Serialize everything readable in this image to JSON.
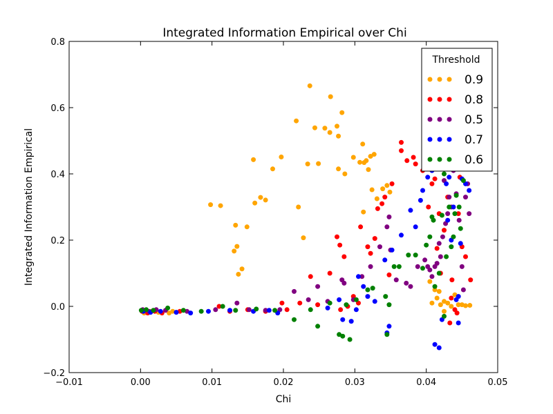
{
  "chart_data": {
    "type": "scatter",
    "title": "Integrated Information Empirical over Chi",
    "xlabel": "Chi",
    "ylabel": "Integrated Information Empirical",
    "xlim": [
      -0.01,
      0.05
    ],
    "ylim": [
      -0.2,
      0.8
    ],
    "xticks": [
      "−0.01",
      "0.00",
      "0.01",
      "0.02",
      "0.03",
      "0.04",
      "0.05"
    ],
    "yticks": [
      "−0.2",
      "0.0",
      "0.2",
      "0.4",
      "0.6",
      "0.8"
    ],
    "grid": false,
    "legend": {
      "title": "Threshold",
      "placement": "top-right"
    },
    "series": [
      {
        "name": "0.9",
        "color": "#FFA500",
        "points": [
          [
            0.0005,
            -0.02
          ],
          [
            0.0015,
            -0.015
          ],
          [
            0.0025,
            -0.018
          ],
          [
            0.004,
            -0.02
          ],
          [
            0.0045,
            -0.015
          ],
          [
            0.0098,
            0.307
          ],
          [
            0.0112,
            0.304
          ],
          [
            0.0133,
            0.245
          ],
          [
            0.0131,
            0.167
          ],
          [
            0.0135,
            0.181
          ],
          [
            0.0137,
            0.097
          ],
          [
            0.0142,
            0.113
          ],
          [
            0.0149,
            0.24
          ],
          [
            0.0158,
            0.443
          ],
          [
            0.016,
            0.312
          ],
          [
            0.0168,
            0.329
          ],
          [
            0.0175,
            0.321
          ],
          [
            0.0185,
            0.415
          ],
          [
            0.0197,
            0.451
          ],
          [
            0.0218,
            0.56
          ],
          [
            0.0221,
            0.3
          ],
          [
            0.0228,
            0.207
          ],
          [
            0.0234,
            0.43
          ],
          [
            0.0237,
            0.666
          ],
          [
            0.0244,
            0.539
          ],
          [
            0.0249,
            0.431
          ],
          [
            0.0258,
            0.538
          ],
          [
            0.0265,
            0.525
          ],
          [
            0.0266,
            0.633
          ],
          [
            0.0275,
            0.544
          ],
          [
            0.0277,
            0.514
          ],
          [
            0.0277,
            0.415
          ],
          [
            0.0282,
            0.585
          ],
          [
            0.0286,
            0.4
          ],
          [
            0.0298,
            0.45
          ],
          [
            0.0307,
            0.435
          ],
          [
            0.0311,
            0.49
          ],
          [
            0.0313,
            0.434
          ],
          [
            0.0316,
            0.44
          ],
          [
            0.0319,
            0.413
          ],
          [
            0.0322,
            0.453
          ],
          [
            0.0324,
            0.352
          ],
          [
            0.0327,
            0.459
          ],
          [
            0.0331,
            0.325
          ],
          [
            0.0339,
            0.355
          ],
          [
            0.0312,
            0.285
          ],
          [
            0.0345,
            0.365
          ],
          [
            0.0349,
            0.345
          ],
          [
            0.0405,
            0.075
          ],
          [
            0.0412,
            0.05
          ],
          [
            0.0418,
            0.045
          ],
          [
            0.042,
            0.005
          ],
          [
            0.0425,
            0.015
          ],
          [
            0.043,
            0.01
          ],
          [
            0.0435,
            0.0
          ],
          [
            0.044,
            0.035
          ],
          [
            0.0445,
            0.005
          ],
          [
            0.045,
            0.005
          ],
          [
            0.0455,
            0.002
          ],
          [
            0.0461,
            0.003
          ],
          [
            0.0415,
            0.025
          ],
          [
            0.0425,
            -0.015
          ],
          [
            0.0408,
            0.01
          ]
        ]
      },
      {
        "name": "0.8",
        "color": "#FF0000",
        "points": [
          [
            0.0002,
            -0.015
          ],
          [
            0.001,
            -0.02
          ],
          [
            0.002,
            -0.015
          ],
          [
            0.003,
            -0.02
          ],
          [
            0.0055,
            -0.015
          ],
          [
            0.011,
            0.0
          ],
          [
            0.0125,
            -0.015
          ],
          [
            0.015,
            -0.01
          ],
          [
            0.0175,
            -0.015
          ],
          [
            0.0198,
            0.01
          ],
          [
            0.0205,
            -0.01
          ],
          [
            0.0223,
            0.01
          ],
          [
            0.0238,
            0.09
          ],
          [
            0.0248,
            0.005
          ],
          [
            0.0265,
            0.1
          ],
          [
            0.0275,
            0.21
          ],
          [
            0.0279,
            0.185
          ],
          [
            0.0285,
            0.15
          ],
          [
            0.028,
            -0.01
          ],
          [
            0.029,
            0.0
          ],
          [
            0.0298,
            0.03
          ],
          [
            0.0305,
            0.01
          ],
          [
            0.0308,
            0.24
          ],
          [
            0.0318,
            0.18
          ],
          [
            0.0322,
            0.16
          ],
          [
            0.0328,
            0.205
          ],
          [
            0.0332,
            0.295
          ],
          [
            0.0338,
            0.31
          ],
          [
            0.0342,
            0.33
          ],
          [
            0.0348,
            0.095
          ],
          [
            0.0352,
            0.37
          ],
          [
            0.0365,
            0.47
          ],
          [
            0.0373,
            0.44
          ],
          [
            0.0382,
            0.45
          ],
          [
            0.0385,
            0.43
          ],
          [
            0.0365,
            0.495
          ],
          [
            0.0395,
            0.41
          ],
          [
            0.0403,
            0.3
          ],
          [
            0.0408,
            0.37
          ],
          [
            0.041,
            0.445
          ],
          [
            0.0412,
            0.385
          ],
          [
            0.0415,
            0.175
          ],
          [
            0.0418,
            0.28
          ],
          [
            0.042,
            0.1
          ],
          [
            0.0425,
            0.23
          ],
          [
            0.0428,
            0.46
          ],
          [
            0.043,
            0.33
          ],
          [
            0.0433,
            -0.05
          ],
          [
            0.0436,
            0.08
          ],
          [
            0.044,
            -0.01
          ],
          [
            0.0443,
            -0.02
          ],
          [
            0.0447,
            0.39
          ],
          [
            0.045,
            0.18
          ],
          [
            0.0455,
            0.15
          ],
          [
            0.0462,
            0.08
          ],
          [
            0.0445,
            0.28
          ],
          [
            0.0435,
            0.025
          ],
          [
            0.0422,
            0.43
          ]
        ]
      },
      {
        "name": "0.5",
        "color": "#800080",
        "points": [
          [
            0.0003,
            -0.01
          ],
          [
            0.0012,
            -0.015
          ],
          [
            0.0022,
            -0.01
          ],
          [
            0.0035,
            -0.012
          ],
          [
            0.0065,
            -0.015
          ],
          [
            0.0105,
            -0.01
          ],
          [
            0.0135,
            0.01
          ],
          [
            0.0152,
            -0.01
          ],
          [
            0.0175,
            -0.012
          ],
          [
            0.0195,
            -0.01
          ],
          [
            0.0215,
            0.045
          ],
          [
            0.0235,
            0.02
          ],
          [
            0.0248,
            0.06
          ],
          [
            0.0262,
            0.015
          ],
          [
            0.0285,
            0.07
          ],
          [
            0.0282,
            0.08
          ],
          [
            0.0298,
            0.02
          ],
          [
            0.031,
            0.09
          ],
          [
            0.0322,
            0.12
          ],
          [
            0.0335,
            0.18
          ],
          [
            0.0348,
            0.27
          ],
          [
            0.0345,
            0.24
          ],
          [
            0.035,
            0.17
          ],
          [
            0.0358,
            0.08
          ],
          [
            0.0372,
            0.07
          ],
          [
            0.0378,
            0.06
          ],
          [
            0.0388,
            0.12
          ],
          [
            0.0398,
            0.14
          ],
          [
            0.0405,
            0.11
          ],
          [
            0.0408,
            0.09
          ],
          [
            0.0412,
            0.12
          ],
          [
            0.0415,
            0.13
          ],
          [
            0.042,
            0.15
          ],
          [
            0.0423,
            0.21
          ],
          [
            0.0427,
            0.25
          ],
          [
            0.043,
            0.28
          ],
          [
            0.0432,
            0.33
          ],
          [
            0.0435,
            0.3
          ],
          [
            0.0438,
            0.41
          ],
          [
            0.0442,
            0.34
          ],
          [
            0.0446,
            0.26
          ],
          [
            0.045,
            0.12
          ],
          [
            0.0452,
            0.05
          ],
          [
            0.0455,
            0.33
          ],
          [
            0.0458,
            0.37
          ],
          [
            0.046,
            0.28
          ],
          [
            0.0418,
            0.19
          ],
          [
            0.0425,
            0.38
          ],
          [
            0.0402,
            0.12
          ]
        ]
      },
      {
        "name": "0.7",
        "color": "#0000FF",
        "points": [
          [
            0.0004,
            -0.015
          ],
          [
            0.0014,
            -0.018
          ],
          [
            0.0028,
            -0.015
          ],
          [
            0.005,
            -0.018
          ],
          [
            0.007,
            -0.02
          ],
          [
            0.0095,
            -0.015
          ],
          [
            0.0125,
            -0.012
          ],
          [
            0.0158,
            -0.015
          ],
          [
            0.018,
            -0.012
          ],
          [
            0.0192,
            -0.02
          ],
          [
            0.0262,
            -0.005
          ],
          [
            0.0278,
            0.02
          ],
          [
            0.0283,
            -0.04
          ],
          [
            0.0295,
            -0.045
          ],
          [
            0.0302,
            -0.01
          ],
          [
            0.0305,
            0.09
          ],
          [
            0.0312,
            0.06
          ],
          [
            0.0318,
            0.03
          ],
          [
            0.0328,
            0.015
          ],
          [
            0.0345,
            -0.08
          ],
          [
            0.0348,
            -0.06
          ],
          [
            0.0342,
            0.14
          ],
          [
            0.0352,
            0.17
          ],
          [
            0.0365,
            0.215
          ],
          [
            0.0378,
            0.29
          ],
          [
            0.0385,
            0.24
          ],
          [
            0.0392,
            0.32
          ],
          [
            0.0395,
            0.35
          ],
          [
            0.0402,
            0.39
          ],
          [
            0.0408,
            0.41
          ],
          [
            0.0412,
            -0.115
          ],
          [
            0.0418,
            -0.125
          ],
          [
            0.0422,
            -0.04
          ],
          [
            0.0425,
            0.49
          ],
          [
            0.0428,
            0.37
          ],
          [
            0.043,
            0.26
          ],
          [
            0.0435,
            0.2
          ],
          [
            0.0438,
            0.3
          ],
          [
            0.0442,
            0.02
          ],
          [
            0.0445,
            -0.05
          ],
          [
            0.0448,
            0.19
          ],
          [
            0.045,
            0.385
          ],
          [
            0.0455,
            0.37
          ],
          [
            0.046,
            0.35
          ],
          [
            0.0415,
            0.505
          ],
          [
            0.0405,
            0.44
          ],
          [
            0.042,
            0.495
          ],
          [
            0.0432,
            0.39
          ],
          [
            0.0445,
            0.03
          ],
          [
            0.0452,
            0.49
          ]
        ]
      },
      {
        "name": "0.6",
        "color": "#008000",
        "points": [
          [
            0.0001,
            -0.012
          ],
          [
            0.0008,
            -0.01
          ],
          [
            0.0018,
            -0.012
          ],
          [
            0.0038,
            -0.005
          ],
          [
            0.006,
            -0.012
          ],
          [
            0.0085,
            -0.015
          ],
          [
            0.0115,
            0.0
          ],
          [
            0.0133,
            -0.012
          ],
          [
            0.0162,
            -0.008
          ],
          [
            0.0188,
            -0.012
          ],
          [
            0.0215,
            -0.04
          ],
          [
            0.0238,
            -0.01
          ],
          [
            0.0248,
            -0.06
          ],
          [
            0.0265,
            0.01
          ],
          [
            0.0278,
            -0.085
          ],
          [
            0.0283,
            -0.09
          ],
          [
            0.0293,
            -0.1
          ],
          [
            0.0288,
            0.005
          ],
          [
            0.0302,
            0.02
          ],
          [
            0.0318,
            0.05
          ],
          [
            0.0325,
            0.055
          ],
          [
            0.0343,
            0.03
          ],
          [
            0.0345,
            -0.085
          ],
          [
            0.0348,
            0.005
          ],
          [
            0.0355,
            0.12
          ],
          [
            0.0362,
            0.12
          ],
          [
            0.0375,
            0.155
          ],
          [
            0.0385,
            0.155
          ],
          [
            0.0395,
            0.115
          ],
          [
            0.04,
            0.185
          ],
          [
            0.0405,
            0.21
          ],
          [
            0.0408,
            0.27
          ],
          [
            0.041,
            0.26
          ],
          [
            0.0412,
            0.06
          ],
          [
            0.0418,
            0.1
          ],
          [
            0.0422,
            0.275
          ],
          [
            0.0425,
            0.4
          ],
          [
            0.0428,
            0.15
          ],
          [
            0.0432,
            0.3
          ],
          [
            0.0435,
            0.18
          ],
          [
            0.044,
            0.28
          ],
          [
            0.0442,
            0.335
          ],
          [
            0.0446,
            0.3
          ],
          [
            0.0448,
            0.235
          ],
          [
            0.0452,
            0.38
          ],
          [
            0.0455,
            0.44
          ],
          [
            0.0405,
            0.44
          ],
          [
            0.0425,
            -0.03
          ],
          [
            0.0438,
            0.21
          ]
        ]
      }
    ]
  }
}
